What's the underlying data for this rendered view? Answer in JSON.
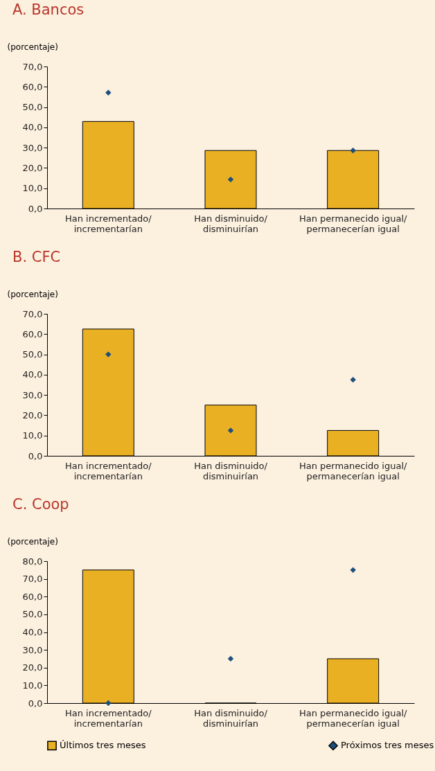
{
  "chart_data": [
    {
      "type": "bar",
      "title": "A. Bancos",
      "ylabel": "(porcentaje)",
      "categories": [
        "Han incrementado/\nincrementarían",
        "Han disminuido/\ndisminuirían",
        "Han permanecido igual/\npermanecerían igual"
      ],
      "series": [
        {
          "type": "bar",
          "color": "#e9b023",
          "values": [
            42.9,
            28.6,
            28.6
          ]
        },
        {
          "type": "scatter",
          "color": "#1c4f7c",
          "values": [
            57.1,
            14.3,
            28.6
          ]
        }
      ],
      "ylim": [
        0,
        70
      ],
      "yticks": [
        {
          "value": 0,
          "label": "0,0"
        },
        {
          "value": 10,
          "label": "10,0"
        },
        {
          "value": 20,
          "label": "20,0"
        },
        {
          "value": 30,
          "label": "30,0"
        },
        {
          "value": 40,
          "label": "40,0"
        },
        {
          "value": 50,
          "label": "50,0"
        },
        {
          "value": 60,
          "label": "60,0"
        },
        {
          "value": 70,
          "label": "70,0"
        }
      ],
      "marker": "diamond"
    },
    {
      "type": "bar",
      "title": "B. CFC",
      "ylabel": "(porcentaje)",
      "categories": [
        "Han incrementado/\nincrementarían",
        "Han disminuido/\ndisminuirían",
        "Han permanecido igual/\npermanecerían igual"
      ],
      "series": [
        {
          "type": "bar",
          "color": "#e9b023",
          "values": [
            62.5,
            25,
            12.5
          ]
        },
        {
          "type": "scatter",
          "color": "#1c4f7c",
          "values": [
            50,
            12.5,
            37.5
          ]
        }
      ],
      "ylim": [
        0,
        70
      ],
      "yticks": [
        {
          "value": 0,
          "label": "0,0"
        },
        {
          "value": 10,
          "label": "10,0"
        },
        {
          "value": 20,
          "label": "20,0"
        },
        {
          "value": 30,
          "label": "30,0"
        },
        {
          "value": 40,
          "label": "40,0"
        },
        {
          "value": 50,
          "label": "50,0"
        },
        {
          "value": 60,
          "label": "60,0"
        },
        {
          "value": 70,
          "label": "70,0"
        }
      ],
      "marker": "diamond"
    },
    {
      "type": "bar",
      "title": "C. Coop",
      "ylabel": "(porcentaje)",
      "categories": [
        "Han incrementado/\nincrementarían",
        "Han disminuido/\ndisminuirían",
        "Han permanecido igual/\npermanecerían igual"
      ],
      "series": [
        {
          "type": "bar",
          "name": "Últimos tres meses",
          "color": "#e9b023",
          "values": [
            75,
            0,
            25
          ]
        },
        {
          "type": "scatter",
          "name": "Próximos tres meses",
          "color": "#1c4f7c",
          "values": [
            0,
            25,
            75
          ]
        }
      ],
      "ylim": [
        0,
        80
      ],
      "yticks": [
        {
          "value": 0,
          "label": "0,0"
        },
        {
          "value": 10,
          "label": "10,0"
        },
        {
          "value": 20,
          "label": "20,0"
        },
        {
          "value": 30,
          "label": "30,0"
        },
        {
          "value": 40,
          "label": "40,0"
        },
        {
          "value": 50,
          "label": "50,0"
        },
        {
          "value": 60,
          "label": "60,0"
        },
        {
          "value": 70,
          "label": "70,0"
        },
        {
          "value": 80,
          "label": "80,0"
        }
      ],
      "marker": "diamond",
      "legend": "bottom"
    }
  ]
}
